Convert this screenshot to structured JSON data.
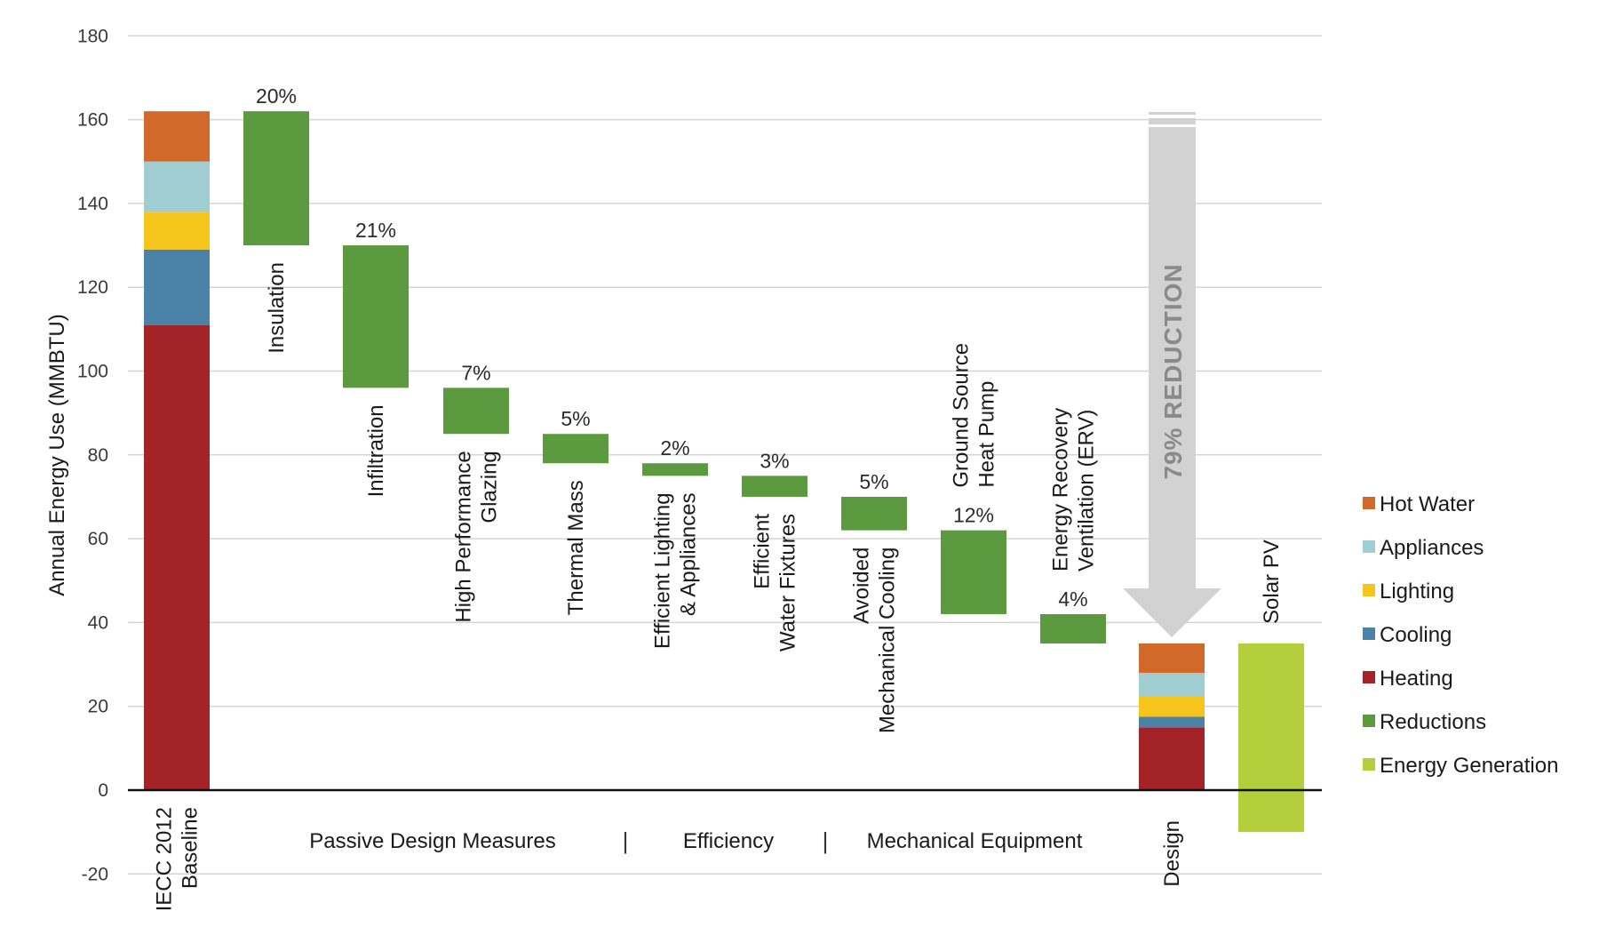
{
  "chart_data": {
    "type": "bar",
    "subtype": "waterfall",
    "title": "",
    "ylabel": "Annual Energy Use (MMBTU)",
    "xlabel": "",
    "ylim": [
      -20,
      180
    ],
    "yticks": [
      -20,
      0,
      20,
      40,
      60,
      80,
      100,
      120,
      140,
      160,
      180
    ],
    "grid": true,
    "legend_position": "right",
    "colors": {
      "Hot Water": "#D0692A",
      "Appliances": "#9FCDD2",
      "Lighting": "#F5C51C",
      "Cooling": "#4A82A8",
      "Heating": "#A32326",
      "Reductions": "#5B9A3E",
      "Energy Generation": "#B5CF3C"
    },
    "legend": [
      "Hot Water",
      "Appliances",
      "Lighting",
      "Cooling",
      "Heating",
      "Reductions",
      "Energy Generation"
    ],
    "baseline": {
      "label_lines": [
        "IECC 2012",
        "Baseline"
      ],
      "stack": [
        {
          "name": "Heating",
          "value": 111
        },
        {
          "name": "Cooling",
          "value": 18
        },
        {
          "name": "Lighting",
          "value": 9
        },
        {
          "name": "Appliances",
          "value": 12
        },
        {
          "name": "Hot Water",
          "value": 12
        }
      ],
      "total": 162
    },
    "reductions": [
      {
        "label_lines": [
          "Insulation"
        ],
        "percent_label": "20%",
        "from": 162,
        "to": 130,
        "label_side": "below"
      },
      {
        "label_lines": [
          "Infiltration"
        ],
        "percent_label": "21%",
        "from": 130,
        "to": 96,
        "label_side": "below"
      },
      {
        "label_lines": [
          "High Performance",
          "Glazing"
        ],
        "percent_label": "7%",
        "from": 96,
        "to": 85,
        "label_side": "below"
      },
      {
        "label_lines": [
          "Thermal Mass"
        ],
        "percent_label": "5%",
        "from": 85,
        "to": 78,
        "label_side": "below"
      },
      {
        "label_lines": [
          "Efficient Lighting",
          "& Appliances"
        ],
        "percent_label": "2%",
        "from": 78,
        "to": 75,
        "label_side": "below"
      },
      {
        "label_lines": [
          "Efficient",
          "Water Fixtures"
        ],
        "percent_label": "3%",
        "from": 75,
        "to": 70,
        "label_side": "below"
      },
      {
        "label_lines": [
          "Avoided",
          "Mechanical Cooling"
        ],
        "percent_label": "5%",
        "from": 70,
        "to": 62,
        "label_side": "below"
      },
      {
        "label_lines": [
          "Ground Source",
          "Heat Pump"
        ],
        "percent_label": "12%",
        "from": 62,
        "to": 42,
        "label_side": "above"
      },
      {
        "label_lines": [
          "Energy Recovery",
          "Ventilation (ERV)"
        ],
        "percent_label": "4%",
        "from": 42,
        "to": 35,
        "label_side": "above"
      }
    ],
    "design": {
      "label_lines": [
        "Design"
      ],
      "stack": [
        {
          "name": "Heating",
          "value": 15
        },
        {
          "name": "Cooling",
          "value": 2.5
        },
        {
          "name": "Lighting",
          "value": 5
        },
        {
          "name": "Appliances",
          "value": 5.5
        },
        {
          "name": "Hot Water",
          "value": 7
        }
      ],
      "total": 35
    },
    "generation": {
      "label_lines": [
        "Solar PV"
      ],
      "from": 35,
      "to": -10
    },
    "annotation": "79% REDUCTION",
    "groups": [
      {
        "label": "Passive Design Measures"
      },
      {
        "label": "Efficiency"
      },
      {
        "label": "Mechanical Equipment"
      }
    ],
    "group_separator": "|"
  }
}
